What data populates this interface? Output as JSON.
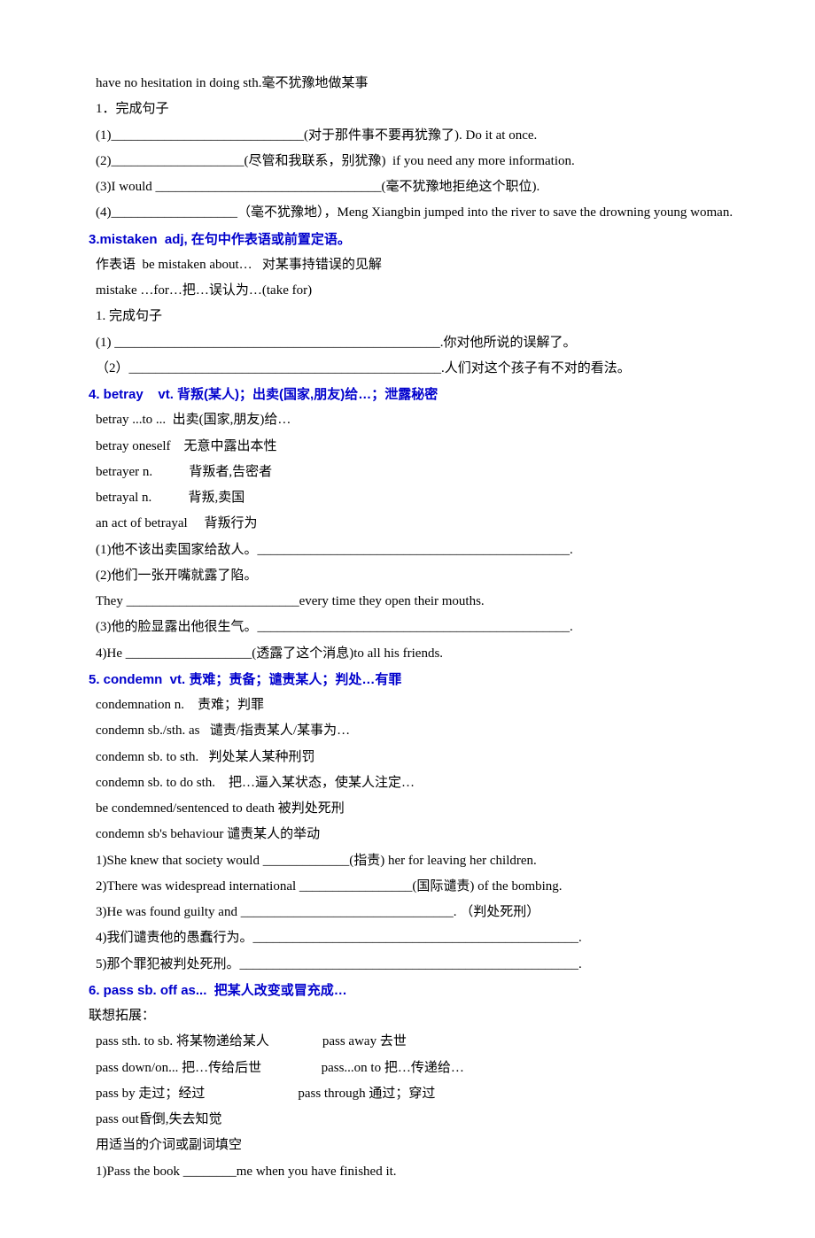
{
  "lines": [
    {
      "cls": "line indent1",
      "text": "have no hesitation in doing sth.毫不犹豫地做某事"
    },
    {
      "cls": "line indent1",
      "text": "1．完成句子"
    },
    {
      "cls": "line indent1",
      "text": "(1)_____________________________(对于那件事不要再犹豫了). Do it at once."
    },
    {
      "cls": "line indent1",
      "text": "(2)____________________(尽管和我联系，别犹豫)  if you need any more information."
    },
    {
      "cls": "line indent1",
      "text": "(3)I would __________________________________(毫不犹豫地拒绝这个职位)."
    },
    {
      "cls": "line hang",
      "text": "(4)___________________（毫不犹豫地），Meng Xiangbin jumped into the river to save the drowning young woman."
    },
    {
      "cls": "line blue bold",
      "text": "3.mistaken  adj, 在句中作表语或前置定语。"
    },
    {
      "cls": "line indent1",
      "text": "作表语  be mistaken about…   对某事持错误的见解"
    },
    {
      "cls": "line indent1",
      "text": "mistake …for…把…误认为…(take for)"
    },
    {
      "cls": "line indent1",
      "text": "1. 完成句子"
    },
    {
      "cls": "line indent1",
      "text": "(1) _________________________________________________.你对他所说的误解了。"
    },
    {
      "cls": "line indent1",
      "text": "（2）_______________________________________________.人们对这个孩子有不对的看法。"
    },
    {
      "cls": "line blue bold",
      "text": "4. betray    vt. 背叛(某人)；出卖(国家,朋友)给…；泄露秘密"
    },
    {
      "cls": "line indent1",
      "text": "betray ...to ...  出卖(国家,朋友)给…"
    },
    {
      "cls": "line indent1",
      "text": "betray oneself    无意中露出本性"
    },
    {
      "cls": "line indent1",
      "text": "betrayer n.           背叛者,告密者"
    },
    {
      "cls": "line indent1",
      "text": "betrayal n.           背叛,卖国"
    },
    {
      "cls": "line indent1",
      "text": "an act of betrayal     背叛行为"
    },
    {
      "cls": "line indent1",
      "text": "(1)他不该出卖国家给敌人。_______________________________________________."
    },
    {
      "cls": "line indent1",
      "text": "(2)他们一张开嘴就露了陷。"
    },
    {
      "cls": "line indent1",
      "text": "They __________________________every time they open their mouths."
    },
    {
      "cls": "line indent1",
      "text": "(3)他的脸显露出他很生气。_______________________________________________."
    },
    {
      "cls": "line indent1",
      "text": "4)He ___________________(透露了这个消息)to all his friends."
    },
    {
      "cls": "line blue bold",
      "text": "5. condemn  vt. 责难；责备；谴责某人；判处…有罪"
    },
    {
      "cls": "line indent1",
      "text": "condemnation n.    责难；判罪"
    },
    {
      "cls": "line indent1",
      "text": "condemn sb./sth. as   谴责/指责某人/某事为…"
    },
    {
      "cls": "line indent1",
      "text": "condemn sb. to sth.   判处某人某种刑罚"
    },
    {
      "cls": "line indent1",
      "text": "condemn sb. to do sth.    把…逼入某状态，使某人注定…"
    },
    {
      "cls": "line indent1",
      "text": "be condemned/sentenced to death 被判处死刑"
    },
    {
      "cls": "line indent1",
      "text": "condemn sb's behaviour 谴责某人的举动"
    },
    {
      "cls": "line indent1",
      "text": "1)She knew that society would _____________(指责) her for leaving her children."
    },
    {
      "cls": "line indent1",
      "text": "2)There was widespread international _________________(国际谴责) of the bombing."
    },
    {
      "cls": "line indent1",
      "text": "3)He was found guilty and ________________________________. （判处死刑）"
    },
    {
      "cls": "line indent1",
      "text": "4)我们谴责他的愚蠢行为。_________________________________________________."
    },
    {
      "cls": "line indent1",
      "text": "5)那个罪犯被判处死刑。___________________________________________________."
    },
    {
      "cls": "line blue bold",
      "text": "6. pass sb. off as...  把某人改变或冒充成…"
    },
    {
      "cls": "line",
      "text": "联想拓展："
    },
    {
      "cls": "line indent1",
      "text": "pass sth. to sb. 将某物递给某人                pass away 去世"
    },
    {
      "cls": "line indent1",
      "text": "pass down/on... 把…传给后世                  pass...on to 把…传递给…"
    },
    {
      "cls": "line indent1",
      "text": "pass by 走过；经过                            pass through 通过；穿过"
    },
    {
      "cls": "line indent1",
      "text": "pass out昏倒,失去知觉"
    },
    {
      "cls": "line indent1",
      "text": "用适当的介词或副词填空"
    },
    {
      "cls": "line indent1",
      "text": "1)Pass the book ________me when you have finished it."
    }
  ]
}
